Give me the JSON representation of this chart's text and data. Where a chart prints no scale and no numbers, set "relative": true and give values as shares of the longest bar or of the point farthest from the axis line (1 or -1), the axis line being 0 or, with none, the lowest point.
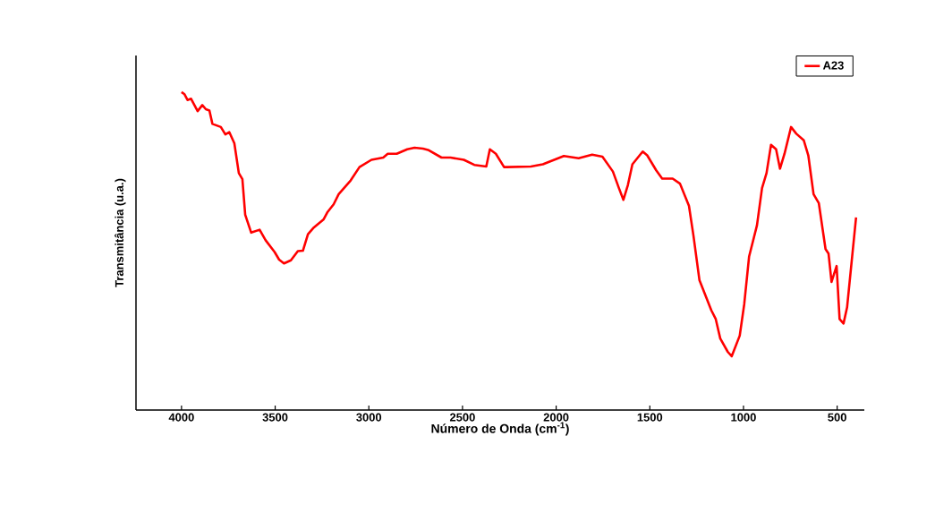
{
  "chart_data": {
    "type": "line",
    "relative": true,
    "xlabel": "Número de Onda (cm$^{-1}$)",
    "ylabel": "Transmitância (u.a.)",
    "xlim": [
      4243,
      355
    ],
    "xticks": [
      4000,
      3500,
      3000,
      2500,
      2000,
      1500,
      1000,
      500
    ],
    "legend": "top right",
    "grid": false,
    "marker": "none",
    "line_style": "solid",
    "series": [
      {
        "name": "A23",
        "color": "#ff0000",
        "x": [
          4000,
          3984,
          3968,
          3949,
          3914,
          3889,
          3870,
          3851,
          3835,
          3790,
          3766,
          3745,
          3718,
          3694,
          3675,
          3660,
          3628,
          3583,
          3551,
          3503,
          3479,
          3453,
          3416,
          3379,
          3352,
          3325,
          3297,
          3241,
          3220,
          3188,
          3161,
          3097,
          3050,
          2986,
          2923,
          2899,
          2851,
          2795,
          2756,
          2711,
          2684,
          2612,
          2564,
          2493,
          2437,
          2373,
          2354,
          2322,
          2278,
          2262,
          2135,
          2071,
          1959,
          1880,
          1808,
          1753,
          1697,
          1665,
          1641,
          1617,
          1593,
          1538,
          1514,
          1466,
          1434,
          1378,
          1339,
          1291,
          1267,
          1235,
          1172,
          1148,
          1124,
          1084,
          1063,
          1020,
          996,
          970,
          928,
          901,
          877,
          853,
          826,
          805,
          781,
          746,
          718,
          678,
          654,
          626,
          598,
          562,
          546,
          530,
          503,
          487,
          466,
          447,
          399
        ],
        "values": [
          1.0,
          0.993,
          0.975,
          0.979,
          0.94,
          0.959,
          0.946,
          0.942,
          0.9,
          0.89,
          0.867,
          0.874,
          0.839,
          0.745,
          0.726,
          0.614,
          0.558,
          0.567,
          0.534,
          0.497,
          0.473,
          0.461,
          0.471,
          0.5,
          0.501,
          0.553,
          0.572,
          0.6,
          0.623,
          0.647,
          0.679,
          0.722,
          0.764,
          0.787,
          0.794,
          0.806,
          0.806,
          0.82,
          0.825,
          0.822,
          0.818,
          0.794,
          0.794,
          0.787,
          0.771,
          0.766,
          0.82,
          0.806,
          0.764,
          0.764,
          0.766,
          0.773,
          0.799,
          0.792,
          0.803,
          0.797,
          0.75,
          0.698,
          0.661,
          0.708,
          0.773,
          0.813,
          0.801,
          0.754,
          0.728,
          0.728,
          0.712,
          0.642,
          0.548,
          0.408,
          0.314,
          0.286,
          0.225,
          0.183,
          0.169,
          0.234,
          0.333,
          0.483,
          0.581,
          0.698,
          0.745,
          0.834,
          0.82,
          0.759,
          0.806,
          0.89,
          0.869,
          0.848,
          0.801,
          0.679,
          0.651,
          0.506,
          0.492,
          0.403,
          0.453,
          0.286,
          0.272,
          0.323,
          0.606
        ]
      }
    ]
  }
}
